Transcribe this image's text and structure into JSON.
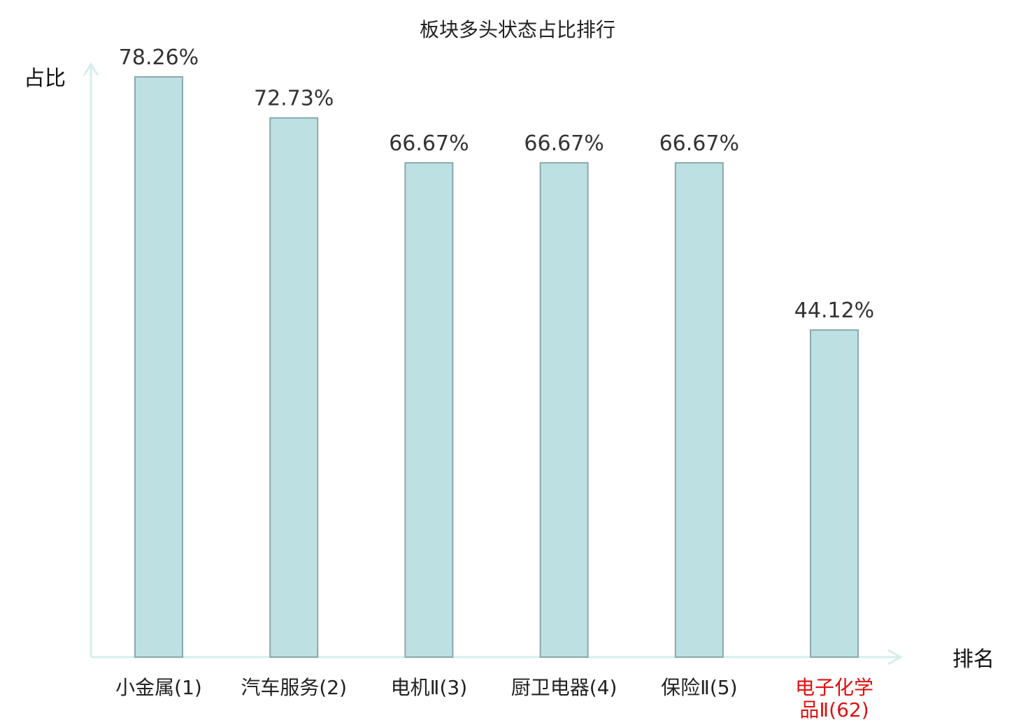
{
  "chart_data": {
    "type": "bar",
    "title": "板块多头状态占比排行",
    "ylabel": "占比",
    "xlabel": "排名",
    "categories": [
      [
        "小金属(1)"
      ],
      [
        "汽车服务(2)"
      ],
      [
        "电机Ⅱ(3)"
      ],
      [
        "厨卫电器(4)"
      ],
      [
        "保险Ⅱ(5)"
      ],
      [
        "电子化学",
        "品Ⅱ(62)"
      ]
    ],
    "values": [
      78.26,
      72.73,
      66.67,
      66.67,
      66.67,
      44.12
    ],
    "value_labels": [
      "78.26%",
      "72.73%",
      "66.67%",
      "66.67%",
      "66.67%",
      "44.12%"
    ],
    "highlight_index": 5,
    "ylim": [
      0,
      78.26
    ],
    "grid": false,
    "colors": {
      "bar_fill": "#bde0e3",
      "bar_stroke": "#8aa9ac",
      "axis": "#d6eeeb",
      "category_text": "#222222",
      "highlight_text": "#e01010"
    }
  }
}
